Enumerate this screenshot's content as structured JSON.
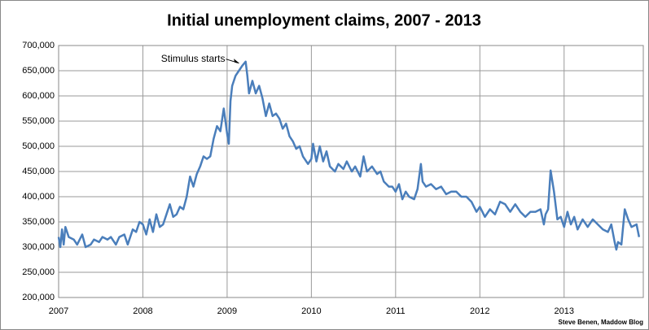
{
  "chart_data": {
    "type": "line",
    "title": "Initial unemployment claims, 2007 - 2013",
    "source": "Steve Benen, Maddow Blog",
    "xlim": [
      2007,
      2013.94
    ],
    "xticks": [
      2007,
      2008,
      2009,
      2010,
      2011,
      2012,
      2013
    ],
    "ylim": [
      200000,
      700000
    ],
    "yticks": [
      {
        "value": 200000,
        "label": "200,000"
      },
      {
        "value": 250000,
        "label": "250,000"
      },
      {
        "value": 300000,
        "label": "300,000"
      },
      {
        "value": 350000,
        "label": "350,000"
      },
      {
        "value": 400000,
        "label": "400,000"
      },
      {
        "value": 450000,
        "label": "450,000"
      },
      {
        "value": 500000,
        "label": "500,000"
      },
      {
        "value": 550000,
        "label": "550,000"
      },
      {
        "value": 600000,
        "label": "600,000"
      },
      {
        "value": 650000,
        "label": "650,000"
      },
      {
        "value": 700000,
        "label": "700,000"
      }
    ],
    "grid": true,
    "annotations": [
      {
        "text": "Stimulus starts",
        "x": 2009.16,
        "y": 665000
      }
    ],
    "x": [
      2007.0,
      2007.02,
      2007.04,
      2007.06,
      2007.08,
      2007.12,
      2007.18,
      2007.22,
      2007.28,
      2007.32,
      2007.38,
      2007.42,
      2007.48,
      2007.52,
      2007.58,
      2007.62,
      2007.68,
      2007.72,
      2007.78,
      2007.82,
      2007.88,
      2007.92,
      2007.96,
      2008.0,
      2008.04,
      2008.08,
      2008.12,
      2008.16,
      2008.2,
      2008.24,
      2008.28,
      2008.32,
      2008.36,
      2008.4,
      2008.44,
      2008.48,
      2008.52,
      2008.56,
      2008.6,
      2008.64,
      2008.68,
      2008.72,
      2008.76,
      2008.8,
      2008.84,
      2008.88,
      2008.92,
      2008.96,
      2009.0,
      2009.02,
      2009.04,
      2009.06,
      2009.1,
      2009.14,
      2009.18,
      2009.22,
      2009.24,
      2009.26,
      2009.3,
      2009.34,
      2009.38,
      2009.42,
      2009.46,
      2009.5,
      2009.54,
      2009.58,
      2009.62,
      2009.66,
      2009.7,
      2009.74,
      2009.78,
      2009.82,
      2009.86,
      2009.9,
      2009.96,
      2010.0,
      2010.02,
      2010.06,
      2010.1,
      2010.14,
      2010.18,
      2010.22,
      2010.28,
      2010.32,
      2010.38,
      2010.42,
      2010.48,
      2010.52,
      2010.58,
      2010.62,
      2010.66,
      2010.72,
      2010.78,
      2010.82,
      2010.86,
      2010.92,
      2010.96,
      2011.0,
      2011.04,
      2011.08,
      2011.12,
      2011.16,
      2011.22,
      2011.26,
      2011.3,
      2011.32,
      2011.36,
      2011.42,
      2011.48,
      2011.54,
      2011.6,
      2011.66,
      2011.72,
      2011.78,
      2011.84,
      2011.9,
      2011.96,
      2012.0,
      2012.06,
      2012.12,
      2012.18,
      2012.24,
      2012.3,
      2012.36,
      2012.42,
      2012.48,
      2012.54,
      2012.6,
      2012.66,
      2012.72,
      2012.76,
      2012.78,
      2012.81,
      2012.84,
      2012.88,
      2012.92,
      2012.96,
      2013.0,
      2013.04,
      2013.08,
      2013.12,
      2013.16,
      2013.22,
      2013.28,
      2013.34,
      2013.4,
      2013.46,
      2013.52,
      2013.56,
      2013.6,
      2013.62,
      2013.64,
      2013.68,
      2013.72,
      2013.76,
      2013.8,
      2013.86,
      2013.89
    ],
    "series": [
      {
        "name": "Initial claims",
        "color": "#4a7ebb",
        "values": [
          320000,
          300000,
          335000,
          305000,
          340000,
          320000,
          315000,
          305000,
          325000,
          300000,
          305000,
          315000,
          310000,
          320000,
          315000,
          320000,
          305000,
          320000,
          325000,
          305000,
          335000,
          330000,
          350000,
          345000,
          325000,
          355000,
          330000,
          365000,
          340000,
          345000,
          365000,
          385000,
          360000,
          365000,
          380000,
          375000,
          400000,
          440000,
          420000,
          445000,
          460000,
          480000,
          475000,
          480000,
          515000,
          540000,
          530000,
          575000,
          525000,
          505000,
          590000,
          620000,
          640000,
          650000,
          660000,
          668000,
          640000,
          605000,
          630000,
          605000,
          620000,
          595000,
          560000,
          585000,
          560000,
          565000,
          555000,
          535000,
          545000,
          520000,
          510000,
          495000,
          500000,
          480000,
          465000,
          475000,
          505000,
          470000,
          500000,
          470000,
          490000,
          460000,
          450000,
          465000,
          455000,
          470000,
          450000,
          460000,
          440000,
          480000,
          450000,
          460000,
          445000,
          450000,
          430000,
          420000,
          420000,
          410000,
          425000,
          395000,
          410000,
          400000,
          395000,
          415000,
          465000,
          430000,
          420000,
          425000,
          415000,
          420000,
          405000,
          410000,
          410000,
          400000,
          400000,
          390000,
          370000,
          380000,
          360000,
          375000,
          365000,
          390000,
          385000,
          370000,
          385000,
          370000,
          360000,
          370000,
          370000,
          375000,
          345000,
          365000,
          375000,
          452000,
          410000,
          355000,
          360000,
          340000,
          370000,
          345000,
          360000,
          335000,
          355000,
          340000,
          355000,
          345000,
          335000,
          330000,
          345000,
          310000,
          295000,
          310000,
          305000,
          375000,
          355000,
          340000,
          345000,
          320000
        ]
      }
    ]
  }
}
